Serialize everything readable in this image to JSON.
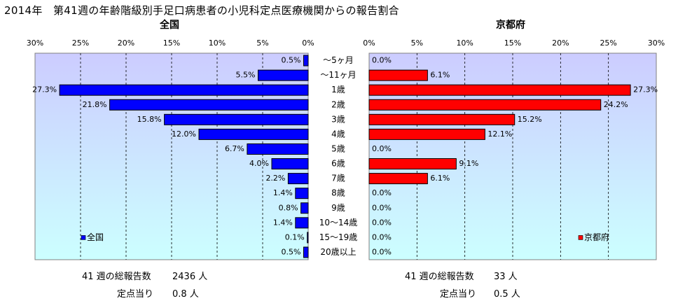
{
  "title": "2014年　第41週の年齢階級別手足口病患者の小児科定点医療機関からの報告割合",
  "categories": [
    "～5ヶ月",
    "～11ヶ月",
    "1歳",
    "2歳",
    "3歳",
    "4歳",
    "5歳",
    "6歳",
    "7歳",
    "8歳",
    "9歳",
    "10～14歳",
    "15～19歳",
    "20歳以上"
  ],
  "chart_data": [
    {
      "type": "bar",
      "orientation": "horizontal-reversed",
      "title": "全国",
      "categories": [
        "～5ヶ月",
        "～11ヶ月",
        "1歳",
        "2歳",
        "3歳",
        "4歳",
        "5歳",
        "6歳",
        "7歳",
        "8歳",
        "9歳",
        "10～14歳",
        "15～19歳",
        "20歳以上"
      ],
      "series": [
        {
          "name": "全国",
          "values": [
            0.5,
            5.5,
            27.3,
            21.8,
            15.8,
            12.0,
            6.7,
            4.0,
            2.2,
            1.4,
            0.8,
            1.4,
            0.1,
            0.5
          ]
        }
      ],
      "value_labels": [
        "0.5%",
        "5.5%",
        "27.3%",
        "21.8%",
        "15.8%",
        "12.0%",
        "6.7%",
        "4.0%",
        "2.2%",
        "1.4%",
        "0.8%",
        "1.4%",
        "0.1%",
        "0.5%"
      ],
      "xlim": [
        0,
        30
      ],
      "ticks": [
        "30%",
        "25%",
        "20%",
        "15%",
        "10%",
        "5%",
        "0%"
      ],
      "tick_values": [
        30,
        25,
        20,
        15,
        10,
        5,
        0
      ],
      "grid": true,
      "legend": "bottom-left",
      "color": "#0000ff"
    },
    {
      "type": "bar",
      "orientation": "horizontal",
      "title": "京都府",
      "categories": [
        "～5ヶ月",
        "～11ヶ月",
        "1歳",
        "2歳",
        "3歳",
        "4歳",
        "5歳",
        "6歳",
        "7歳",
        "8歳",
        "9歳",
        "10～14歳",
        "15～19歳",
        "20歳以上"
      ],
      "series": [
        {
          "name": "京都府",
          "values": [
            0.0,
            6.1,
            27.3,
            24.2,
            15.2,
            12.1,
            0.0,
            9.1,
            6.1,
            0.0,
            0.0,
            0.0,
            0.0,
            0.0
          ]
        }
      ],
      "value_labels": [
        "0.0%",
        "6.1%",
        "27.3%",
        "24.2%",
        "15.2%",
        "12.1%",
        "0.0%",
        "9.1%",
        "6.1%",
        "0.0%",
        "0.0%",
        "0.0%",
        "0.0%",
        "0.0%"
      ],
      "xlim": [
        0,
        30
      ],
      "ticks": [
        "0%",
        "5%",
        "10%",
        "15%",
        "20%",
        "25%",
        "30%"
      ],
      "tick_values": [
        0,
        5,
        10,
        15,
        20,
        25,
        30
      ],
      "grid": true,
      "legend": "bottom-right",
      "color": "#ff0000"
    }
  ],
  "footer": {
    "left": {
      "total_label": "41 週の総報告数",
      "total_value": "2436 人",
      "per_label": "定点当り",
      "per_value": "0.8 人"
    },
    "right": {
      "total_label": "41 週の総報告数",
      "total_value": "33 人",
      "per_label": "定点当り",
      "per_value": "0.5 人"
    }
  },
  "colors": {
    "bg_top": "#ccccff",
    "bg_bottom": "#ccffff",
    "left_bar": "#0000ff",
    "right_bar": "#ff0000"
  }
}
